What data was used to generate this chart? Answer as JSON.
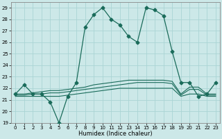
{
  "xlabel": "Humidex (Indice chaleur)",
  "xlim": [
    -0.5,
    23.5
  ],
  "ylim": [
    19,
    29.5
  ],
  "yticks": [
    19,
    20,
    21,
    22,
    23,
    24,
    25,
    26,
    27,
    28,
    29
  ],
  "xticks": [
    0,
    1,
    2,
    3,
    4,
    5,
    6,
    7,
    8,
    9,
    10,
    11,
    12,
    13,
    14,
    15,
    16,
    17,
    18,
    19,
    20,
    21,
    22,
    23
  ],
  "bg_color": "#cce8e8",
  "grid_color": "#aad4d4",
  "line_color": "#1a6b5a",
  "series": [
    {
      "x": [
        0,
        1,
        2,
        3,
        4,
        5,
        6,
        7,
        8,
        9,
        10,
        11,
        12,
        13,
        14,
        15,
        16,
        17,
        18,
        19,
        20,
        21,
        22,
        23
      ],
      "y": [
        21.5,
        22.3,
        21.5,
        21.5,
        20.8,
        19.0,
        21.3,
        22.5,
        27.3,
        28.4,
        29.0,
        28.0,
        27.5,
        26.5,
        26.0,
        29.0,
        28.8,
        28.3,
        25.2,
        22.5,
        22.5,
        21.3,
        21.5,
        22.5
      ],
      "marker": "D",
      "markersize": 2.5,
      "linewidth": 0.9
    },
    {
      "x": [
        0,
        1,
        2,
        3,
        4,
        5,
        6,
        7,
        8,
        9,
        10,
        11,
        12,
        13,
        14,
        15,
        16,
        17,
        18,
        19,
        20,
        21,
        22,
        23
      ],
      "y": [
        21.5,
        21.5,
        21.6,
        21.7,
        21.8,
        21.8,
        21.9,
        22.0,
        22.1,
        22.3,
        22.4,
        22.5,
        22.6,
        22.7,
        22.7,
        22.7,
        22.7,
        22.7,
        22.6,
        21.5,
        22.1,
        22.1,
        21.5,
        21.5
      ],
      "marker": null,
      "linewidth": 0.8
    },
    {
      "x": [
        0,
        1,
        2,
        3,
        4,
        5,
        6,
        7,
        8,
        9,
        10,
        11,
        12,
        13,
        14,
        15,
        16,
        17,
        18,
        19,
        20,
        21,
        22,
        23
      ],
      "y": [
        21.4,
        21.4,
        21.5,
        21.5,
        21.6,
        21.6,
        21.7,
        21.8,
        21.9,
        22.0,
        22.1,
        22.2,
        22.3,
        22.4,
        22.5,
        22.5,
        22.5,
        22.5,
        22.4,
        21.4,
        21.9,
        21.9,
        21.4,
        21.4
      ],
      "marker": null,
      "linewidth": 0.8
    },
    {
      "x": [
        0,
        1,
        2,
        3,
        4,
        5,
        6,
        7,
        8,
        9,
        10,
        11,
        12,
        13,
        14,
        15,
        16,
        17,
        18,
        19,
        20,
        21,
        22,
        23
      ],
      "y": [
        21.3,
        21.3,
        21.3,
        21.3,
        21.3,
        21.3,
        21.4,
        21.5,
        21.6,
        21.7,
        21.8,
        21.9,
        22.0,
        22.0,
        22.0,
        22.0,
        22.0,
        22.0,
        22.0,
        21.3,
        21.5,
        21.5,
        21.3,
        21.3
      ],
      "marker": null,
      "linewidth": 0.8
    }
  ]
}
